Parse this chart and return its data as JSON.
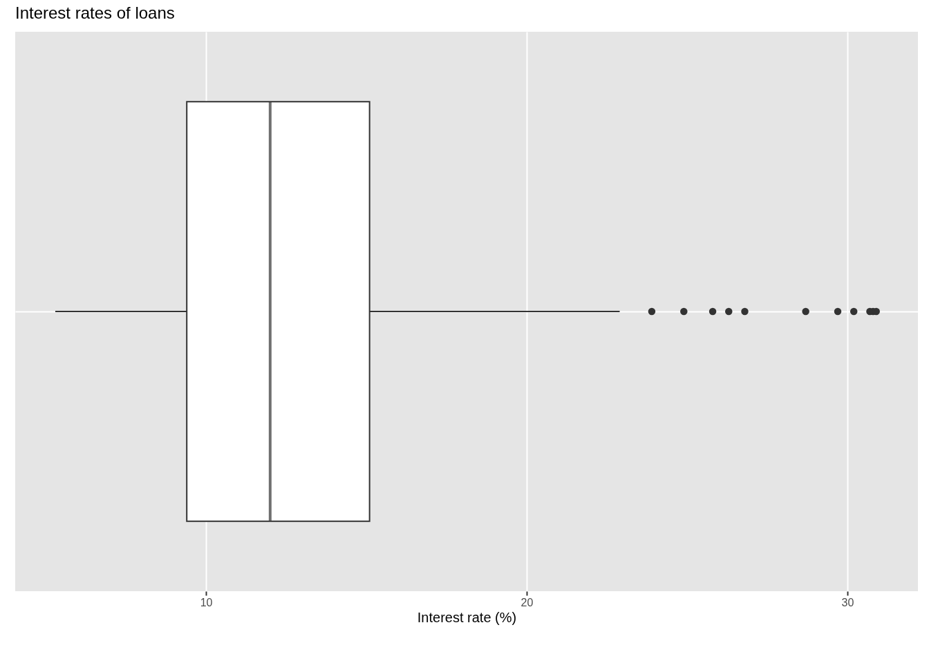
{
  "chart_data": {
    "type": "box",
    "title": "Interest rates of loans",
    "xlabel": "Interest rate (%)",
    "orientation": "horizontal",
    "categories": [
      null
    ],
    "boxes": [
      {
        "low": 5.3,
        "q1": 9.4,
        "median": 12.0,
        "q3": 15.1,
        "high": 22.9,
        "outliers": [
          23.9,
          24.9,
          25.8,
          26.3,
          26.8,
          28.7,
          29.7,
          30.2,
          30.7,
          30.8,
          30.9
        ]
      }
    ],
    "xlim": [
      4.05,
      32.2
    ],
    "xticks": [
      10,
      20,
      30
    ],
    "grid": true,
    "tick_labels": "x"
  }
}
